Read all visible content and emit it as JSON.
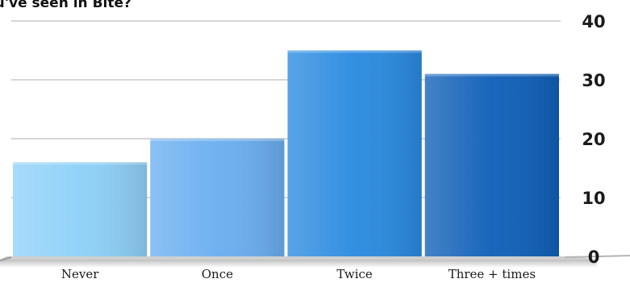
{
  "title": "ou've seen in Bite?",
  "chart_data": {
    "type": "bar",
    "title": "ou've seen in Bite?",
    "xlabel": "",
    "ylabel": "",
    "categories": [
      "Never",
      "Once",
      "Twice",
      "Three + times"
    ],
    "values": [
      16,
      20,
      35,
      31
    ],
    "colors": [
      "#8ed0f8",
      "#6aaef0",
      "#2a8ae0",
      "#0f5fb8"
    ],
    "ylim": [
      0,
      40
    ],
    "yticks": [
      0,
      10,
      20,
      30,
      40
    ],
    "ytick_labels": [
      "0",
      "10",
      "20",
      "30",
      "40"
    ],
    "y_axis_side": "right",
    "grid": true
  }
}
